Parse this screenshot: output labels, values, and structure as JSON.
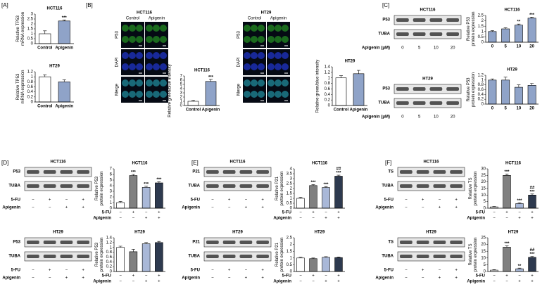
{
  "panel_labels": [
    "[A]",
    "[B]",
    "[C]",
    "[D]",
    "[E]",
    "[F]"
  ],
  "micrographs": [
    {
      "title": "HCT116",
      "columns": [
        "Control",
        "Apigenin"
      ],
      "rows": [
        "P53",
        "DAPI",
        "Merge"
      ]
    },
    {
      "title": "HT29",
      "columns": [
        "Control",
        "Apigenin"
      ],
      "rows": [
        "P53",
        "DAPI",
        "Merge"
      ]
    }
  ],
  "blots": [
    {
      "title": "HCT116",
      "rows": [
        "P53",
        "TUBA"
      ],
      "conditions": [
        {
          "name": "Apigenin (μM)",
          "marks": [
            "0",
            "5",
            "10",
            "20"
          ]
        }
      ]
    },
    {
      "title": "HT29",
      "rows": [
        "P53",
        "TUBA"
      ],
      "conditions": [
        {
          "name": "Apigenin (μM)",
          "marks": [
            "0",
            "5",
            "10",
            "20"
          ]
        }
      ]
    },
    {
      "title": "HCT116",
      "rows": [
        "P53",
        "TUBA"
      ],
      "conditions": [
        {
          "name": "5-FU",
          "marks": [
            "−",
            "+",
            "−",
            "+"
          ]
        },
        {
          "name": "Apigenin",
          "marks": [
            "−",
            "−",
            "+",
            "+"
          ]
        }
      ]
    },
    {
      "title": "HT29",
      "rows": [
        "P53",
        "TUBA"
      ],
      "conditions": [
        {
          "name": "5-FU",
          "marks": [
            "−",
            "+",
            "−",
            "+"
          ]
        },
        {
          "name": "Apigenin",
          "marks": [
            "−",
            "−",
            "+",
            "+"
          ]
        }
      ]
    },
    {
      "title": "HCT116",
      "rows": [
        "P21",
        "TUBA"
      ],
      "conditions": [
        {
          "name": "5-FU",
          "marks": [
            "−",
            "+",
            "−",
            "+"
          ]
        },
        {
          "name": "Apigenin",
          "marks": [
            "−",
            "−",
            "+",
            "+"
          ]
        }
      ]
    },
    {
      "title": "HT29",
      "rows": [
        "P21",
        "TUBA"
      ],
      "conditions": [
        {
          "name": "5-FU",
          "marks": [
            "−",
            "+",
            "−",
            "+"
          ]
        },
        {
          "name": "Apigenin",
          "marks": [
            "−",
            "−",
            "+",
            "+"
          ]
        }
      ]
    },
    {
      "title": "HCT116",
      "rows": [
        "TS",
        "TUBA"
      ],
      "conditions": [
        {
          "name": "5-FU",
          "marks": [
            "−",
            "+",
            "−",
            "+"
          ]
        },
        {
          "name": "Apigenin",
          "marks": [
            "−",
            "−",
            "+",
            "+"
          ]
        }
      ]
    },
    {
      "title": "HT29",
      "rows": [
        "TS",
        "TUBA"
      ],
      "conditions": [
        {
          "name": "5-FU",
          "marks": [
            "−",
            "+",
            "−",
            "+"
          ]
        },
        {
          "name": "Apigenin",
          "marks": [
            "−",
            "−",
            "+",
            "+"
          ]
        }
      ]
    }
  ],
  "chart_data": [
    {
      "type": "bar",
      "title": "HCT116",
      "ylabel": [
        "Relative TP53",
        "mRNA expression"
      ],
      "categories": [
        "Control",
        "Apigenin"
      ],
      "values": [
        1,
        2.3
      ],
      "errors": [
        0.3,
        0.1
      ],
      "annotations": [
        [],
        [
          "***"
        ]
      ],
      "colors": [
        "#ffffff",
        "#8fa3c8"
      ],
      "ylim": [
        0,
        3
      ],
      "yticks": [
        0,
        0.5,
        1,
        1.5,
        2,
        2.5,
        3
      ]
    },
    {
      "type": "bar",
      "title": "HT29",
      "ylabel": [
        "Relative TP53",
        "mRNA expression"
      ],
      "categories": [
        "Control",
        "Apigenin"
      ],
      "values": [
        1,
        0.8
      ],
      "errors": [
        0.08,
        0.08
      ],
      "annotations": [
        [],
        []
      ],
      "colors": [
        "#ffffff",
        "#8fa3c8"
      ],
      "ylim": [
        0,
        1.2
      ],
      "yticks": [
        0,
        0.2,
        0.4,
        0.6,
        0.8,
        1,
        1.2
      ]
    },
    {
      "type": "bar",
      "title": "HCT116",
      "ylabel": [
        "Relative green/blue intensity"
      ],
      "categories": [
        "Control",
        "Apigenin"
      ],
      "values": [
        1,
        5.7
      ],
      "errors": [
        0.2,
        0.5
      ],
      "annotations": [
        [],
        [
          "***"
        ]
      ],
      "colors": [
        "#ffffff",
        "#8fa3c8"
      ],
      "ylim": [
        0,
        7
      ],
      "yticks": [
        0,
        1,
        2,
        3,
        4,
        5,
        6,
        7
      ]
    },
    {
      "type": "bar",
      "title": "HT29",
      "ylabel": [
        "Relative green/blue intensity"
      ],
      "categories": [
        "Control",
        "Apigenin"
      ],
      "values": [
        1,
        1.15
      ],
      "errors": [
        0.08,
        0.12
      ],
      "annotations": [
        [],
        []
      ],
      "colors": [
        "#ffffff",
        "#8fa3c8"
      ],
      "ylim": [
        0,
        1.4
      ],
      "yticks": [
        0,
        0.2,
        0.4,
        0.6,
        0.8,
        1,
        1.2,
        1.4
      ]
    },
    {
      "type": "bar",
      "title": "HCT116",
      "ylabel": [
        "Relative P53",
        "protein expression"
      ],
      "categories": [
        "0",
        "5",
        "10",
        "20"
      ],
      "values": [
        1,
        1.25,
        1.6,
        2.25
      ],
      "errors": [
        0.08,
        0.1,
        0.1,
        0.1
      ],
      "annotations": [
        [],
        [],
        [
          "**"
        ],
        [
          "***"
        ]
      ],
      "colors": [
        "#8fa3c8",
        "#8fa3c8",
        "#8fa3c8",
        "#8fa3c8"
      ],
      "ylim": [
        0,
        2.5
      ],
      "yticks": [
        0,
        0.5,
        1,
        1.5,
        2,
        2.5
      ]
    },
    {
      "type": "bar",
      "title": "HT29",
      "ylabel": [
        "Relative P53",
        "protein expression"
      ],
      "categories": [
        "0",
        "5",
        "10",
        "20"
      ],
      "values": [
        1,
        1,
        0.7,
        0.78
      ],
      "errors": [
        0.05,
        0.12,
        0.1,
        0.08
      ],
      "annotations": [
        [],
        [],
        [],
        []
      ],
      "colors": [
        "#8fa3c8",
        "#8fa3c8",
        "#8fa3c8",
        "#8fa3c8"
      ],
      "ylim": [
        0,
        1.2
      ],
      "yticks": [
        0,
        0.2,
        0.4,
        0.6,
        0.8,
        1,
        1.2
      ]
    },
    {
      "type": "bar",
      "title": "HCT116",
      "ylabel": [
        "Relative P53",
        "protein expression"
      ],
      "treatments": [
        {
          "name": "5-FU",
          "marks": [
            "−",
            "+",
            "−",
            "+"
          ]
        },
        {
          "name": "Apigenin",
          "marks": [
            "−",
            "−",
            "+",
            "+"
          ]
        }
      ],
      "values": [
        1,
        5.8,
        3.7,
        4.5
      ],
      "errors": [
        0.2,
        0.2,
        0.2,
        0.2
      ],
      "annotations": [
        [],
        [
          "***"
        ],
        [
          "***"
        ],
        [
          "***"
        ]
      ],
      "colors": [
        "#ffffff",
        "#808080",
        "#a9b8d8",
        "#2e3a4f"
      ],
      "ylim": [
        0,
        7
      ],
      "yticks": [
        0,
        1,
        2,
        3,
        4,
        5,
        6,
        7
      ]
    },
    {
      "type": "bar",
      "title": "HT29",
      "ylabel": [
        "Relative P53",
        "protein expression"
      ],
      "treatments": [
        {
          "name": "5-FU",
          "marks": [
            "−",
            "+",
            "−",
            "+"
          ]
        },
        {
          "name": "Apigenin",
          "marks": [
            "−",
            "−",
            "+",
            "+"
          ]
        }
      ],
      "values": [
        1,
        0.82,
        1.15,
        1.2
      ],
      "errors": [
        0.05,
        0.1,
        0.05,
        0.05
      ],
      "annotations": [
        [],
        [],
        [],
        []
      ],
      "colors": [
        "#ffffff",
        "#808080",
        "#a9b8d8",
        "#2e3a4f"
      ],
      "ylim": [
        0,
        1.4
      ],
      "yticks": [
        0,
        0.2,
        0.4,
        0.6,
        0.8,
        1,
        1.2,
        1.4
      ]
    },
    {
      "type": "bar",
      "title": "HCT116",
      "ylabel": [
        "Relative P21",
        "protein expression"
      ],
      "treatments": [
        {
          "name": "5-FU",
          "marks": [
            "−",
            "+",
            "−",
            "+"
          ]
        },
        {
          "name": "Apigenin",
          "marks": [
            "−",
            "−",
            "+",
            "+"
          ]
        }
      ],
      "values": [
        1,
        2.3,
        2.1,
        3.25
      ],
      "errors": [
        0.1,
        0.1,
        0.1,
        0.1
      ],
      "annotations": [
        [],
        [
          "***"
        ],
        [
          "***"
        ],
        [
          "##",
          "***"
        ]
      ],
      "colors": [
        "#ffffff",
        "#808080",
        "#a9b8d8",
        "#2e3a4f"
      ],
      "ylim": [
        0,
        4
      ],
      "yticks": [
        0,
        0.5,
        1,
        1.5,
        2,
        2.5,
        3,
        3.5,
        4
      ]
    },
    {
      "type": "bar",
      "title": "HT29",
      "ylabel": [
        "Relative P21",
        "protein expression"
      ],
      "treatments": [
        {
          "name": "5-FU",
          "marks": [
            "−",
            "+",
            "−",
            "+"
          ]
        },
        {
          "name": "Apigenin",
          "marks": [
            "−",
            "−",
            "+",
            "+"
          ]
        }
      ],
      "values": [
        1,
        0.95,
        1.05,
        1.03
      ],
      "errors": [
        0.05,
        0.05,
        0.05,
        0.05
      ],
      "annotations": [
        [],
        [],
        [],
        []
      ],
      "colors": [
        "#ffffff",
        "#808080",
        "#a9b8d8",
        "#2e3a4f"
      ],
      "ylim": [
        0,
        2.5
      ],
      "yticks": [
        0,
        0.5,
        1,
        1.5,
        2,
        2.5
      ]
    },
    {
      "type": "bar",
      "title": "HCT116",
      "ylabel": [
        "Relative TS",
        "protein expression"
      ],
      "treatments": [
        {
          "name": "5-FU",
          "marks": [
            "−",
            "+",
            "−",
            "+"
          ]
        },
        {
          "name": "Apigenin",
          "marks": [
            "−",
            "−",
            "+",
            "+"
          ]
        }
      ],
      "values": [
        1,
        25,
        3.5,
        10
      ],
      "errors": [
        0.3,
        1,
        0.6,
        0.8
      ],
      "annotations": [
        [],
        [
          "***"
        ],
        [
          "***"
        ],
        [
          "##",
          "***"
        ]
      ],
      "colors": [
        "#ffffff",
        "#808080",
        "#a9b8d8",
        "#2e3a4f"
      ],
      "ylim": [
        0,
        30
      ],
      "yticks": [
        0,
        5,
        10,
        15,
        20,
        25,
        30
      ]
    },
    {
      "type": "bar",
      "title": "HT29",
      "ylabel": [
        "Relative TS",
        "protein expression"
      ],
      "treatments": [
        {
          "name": "5-FU",
          "marks": [
            "−",
            "+",
            "−",
            "+"
          ]
        },
        {
          "name": "Apigenin",
          "marks": [
            "−",
            "−",
            "+",
            "+"
          ]
        }
      ],
      "values": [
        1,
        18,
        2,
        10.5
      ],
      "errors": [
        0.4,
        1,
        0.5,
        0.7
      ],
      "annotations": [
        [],
        [
          "***"
        ],
        [
          "**"
        ],
        [
          "##",
          "***"
        ]
      ],
      "colors": [
        "#ffffff",
        "#808080",
        "#a9b8d8",
        "#2e3a4f"
      ],
      "ylim": [
        0,
        25
      ],
      "yticks": [
        0,
        5,
        10,
        15,
        20,
        25
      ]
    }
  ]
}
